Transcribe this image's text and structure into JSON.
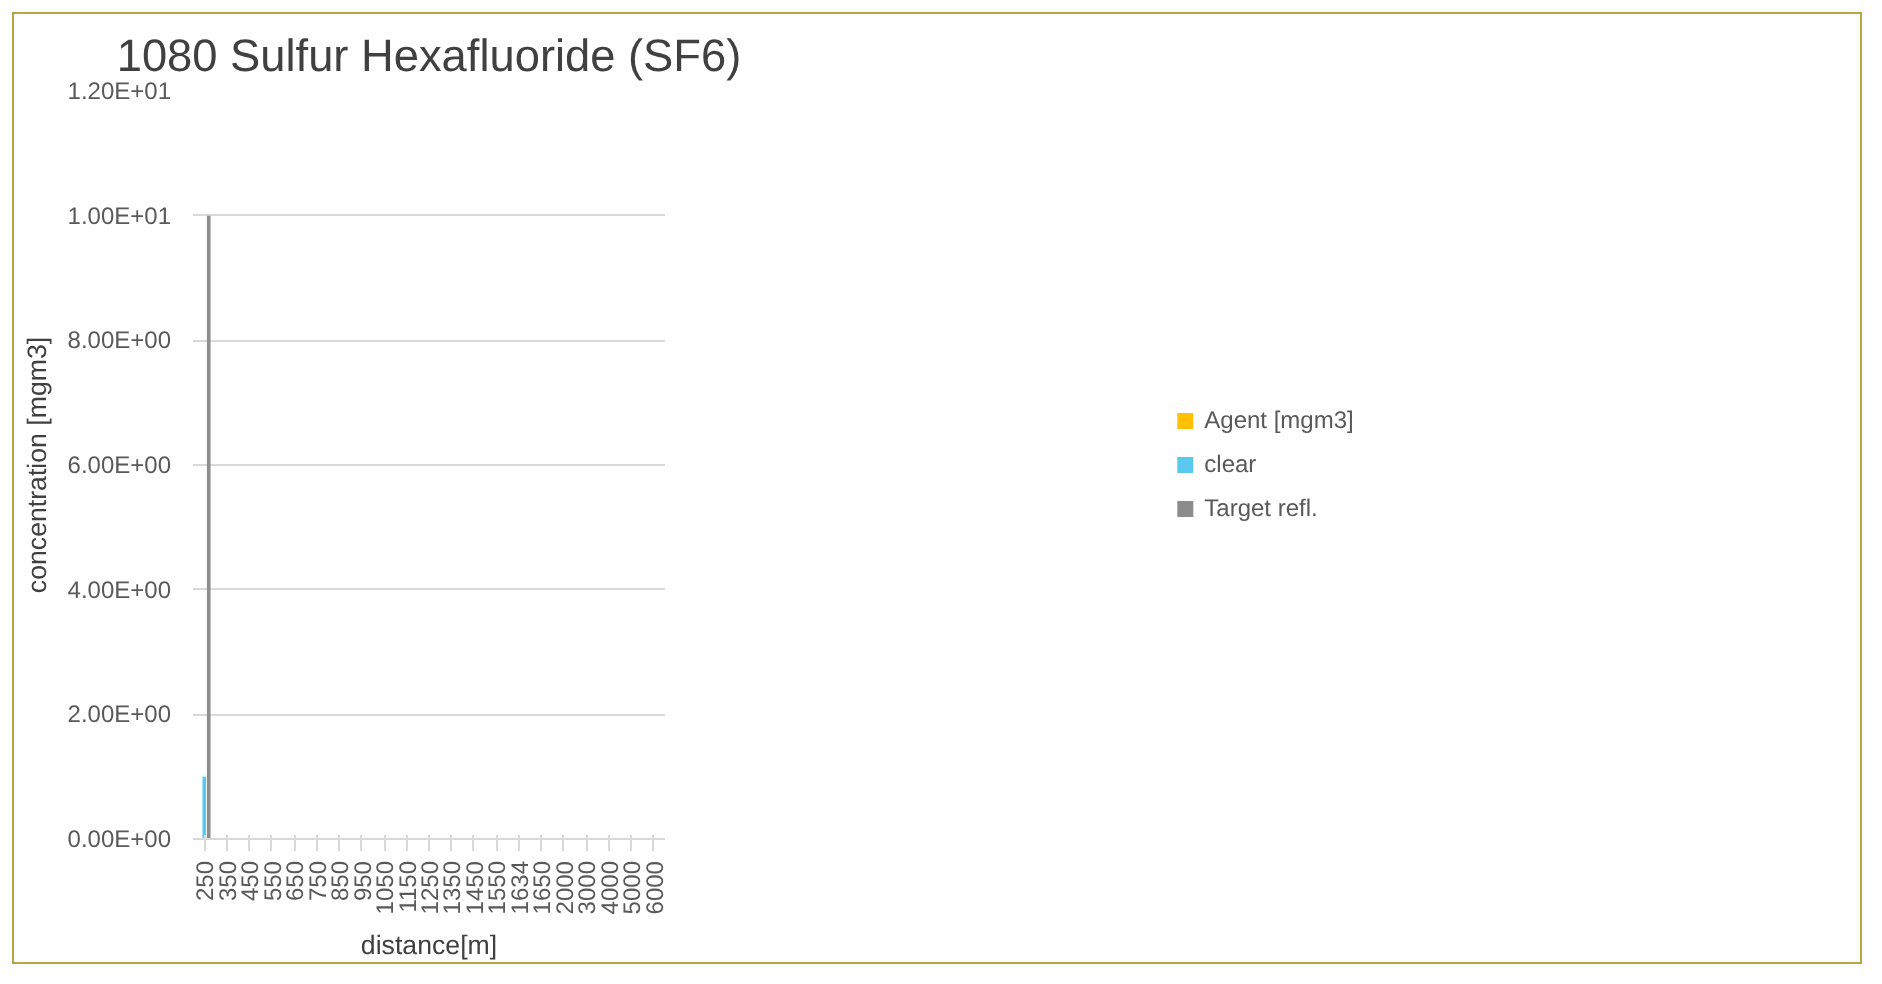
{
  "chart_data": {
    "type": "bar",
    "title": "1080 Sulfur Hexafluoride (SF6)",
    "xlabel": "distance[m]",
    "ylabel": "concentration [mgm3]",
    "categories": [
      "250",
      "350",
      "450",
      "550",
      "650",
      "750",
      "850",
      "950",
      "1050",
      "1150",
      "1250",
      "1350",
      "1450",
      "1550",
      "1634",
      "1650",
      "2000",
      "3000",
      "4000",
      "5000",
      "6000"
    ],
    "series": [
      {
        "name": "Agent [mgm3]",
        "color": "#ffc000",
        "values": [
          0,
          null,
          null,
          null,
          null,
          null,
          null,
          null,
          null,
          null,
          null,
          null,
          null,
          null,
          null,
          null,
          null,
          null,
          null,
          null,
          null
        ]
      },
      {
        "name": "clear",
        "color": "#5bc8f0",
        "values": [
          1.0,
          null,
          null,
          null,
          null,
          null,
          null,
          null,
          null,
          null,
          null,
          null,
          null,
          null,
          null,
          null,
          null,
          null,
          null,
          null,
          null
        ]
      },
      {
        "name": "Target refl.",
        "color": "#8c8c8c",
        "values": [
          10.0,
          null,
          null,
          null,
          null,
          null,
          null,
          null,
          null,
          null,
          null,
          null,
          null,
          null,
          null,
          null,
          null,
          null,
          null,
          null,
          null
        ]
      }
    ],
    "ylim": [
      0,
      12
    ],
    "yticks": [
      {
        "value": 0,
        "label": "0.00E+00"
      },
      {
        "value": 2,
        "label": "2.00E+00"
      },
      {
        "value": 4,
        "label": "4.00E+00"
      },
      {
        "value": 6,
        "label": "6.00E+00"
      },
      {
        "value": 8,
        "label": "8.00E+00"
      },
      {
        "value": 10,
        "label": "1.00E+01"
      },
      {
        "value": 12,
        "label": "1.20E+01"
      }
    ],
    "grid": "y",
    "legend": "right"
  }
}
